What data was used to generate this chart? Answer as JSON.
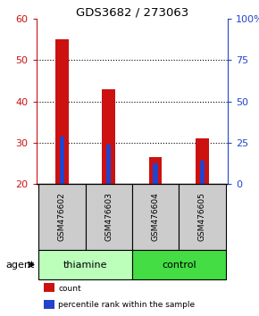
{
  "title": "GDS3682 / 273063",
  "samples": [
    "GSM476602",
    "GSM476603",
    "GSM476604",
    "GSM476605"
  ],
  "red_tops": [
    55,
    43,
    26.5,
    31
  ],
  "blue_tops": [
    31.5,
    29.5,
    25,
    25.7
  ],
  "baseline": 20,
  "ylim": [
    20,
    60
  ],
  "yticks_left": [
    20,
    30,
    40,
    50,
    60
  ],
  "yticks_right": [
    0,
    25,
    50,
    75,
    100
  ],
  "right_axis_labels": [
    "0",
    "25",
    "50",
    "75",
    "100%"
  ],
  "red_color": "#cc1111",
  "blue_color": "#2244cc",
  "red_bar_width": 0.28,
  "blue_bar_width": 0.1,
  "groups": [
    {
      "label": "thiamine",
      "samples": [
        0,
        1
      ],
      "color": "#bbffbb"
    },
    {
      "label": "control",
      "samples": [
        2,
        3
      ],
      "color": "#44dd44"
    }
  ],
  "legend_items": [
    {
      "label": "count",
      "color": "#cc1111"
    },
    {
      "label": "percentile rank within the sample",
      "color": "#2244cc"
    }
  ],
  "left_axis_color": "#cc1111",
  "right_axis_color": "#2244cc",
  "agent_label": "agent",
  "sample_box_color": "#cccccc",
  "bar_positions": [
    0,
    1,
    2,
    3
  ]
}
